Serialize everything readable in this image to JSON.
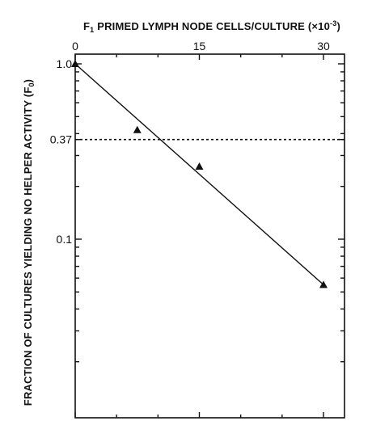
{
  "chart_data": {
    "type": "scatter",
    "x_title_prefix": "F",
    "x_title_sub": "1",
    "x_title_main": " PRIMED LYMPH NODE CELLS/CULTURE (×10",
    "x_title_exp": "-3",
    "x_title_suffix": ")",
    "y_title_main": "FRACTION OF CULTURES YIELDING NO HELPER ACTIVITY (F",
    "y_title_sub": "0",
    "y_title_suffix": ")",
    "x_scale": "linear",
    "y_scale": "log",
    "xlim": [
      0,
      35
    ],
    "ylim": [
      0.01,
      1.0
    ],
    "x_ticks": [
      {
        "value": 0,
        "label": "0"
      },
      {
        "value": 15,
        "label": "15"
      },
      {
        "value": 30,
        "label": "30"
      }
    ],
    "x_minor_ticks": [
      5,
      10,
      20,
      25
    ],
    "y_ticks": [
      {
        "value": 1.0,
        "label": "1.0"
      },
      {
        "value": 0.37,
        "label": "0.37"
      },
      {
        "value": 0.1,
        "label": "0.1"
      }
    ],
    "y_minor_ticks": [
      0.9,
      0.8,
      0.7,
      0.6,
      0.5,
      0.4,
      0.3,
      0.2,
      0.09,
      0.08,
      0.07,
      0.06,
      0.05,
      0.04,
      0.03,
      0.02
    ],
    "grid": false,
    "legend": "none",
    "points": [
      {
        "x": 0,
        "y": 1.0
      },
      {
        "x": 7.5,
        "y": 0.42
      },
      {
        "x": 15,
        "y": 0.26
      },
      {
        "x": 30,
        "y": 0.055
      }
    ],
    "fit_line": [
      {
        "x": 0,
        "y": 1.0
      },
      {
        "x": 30,
        "y": 0.055
      }
    ],
    "reference_line": {
      "y": 0.37
    }
  }
}
